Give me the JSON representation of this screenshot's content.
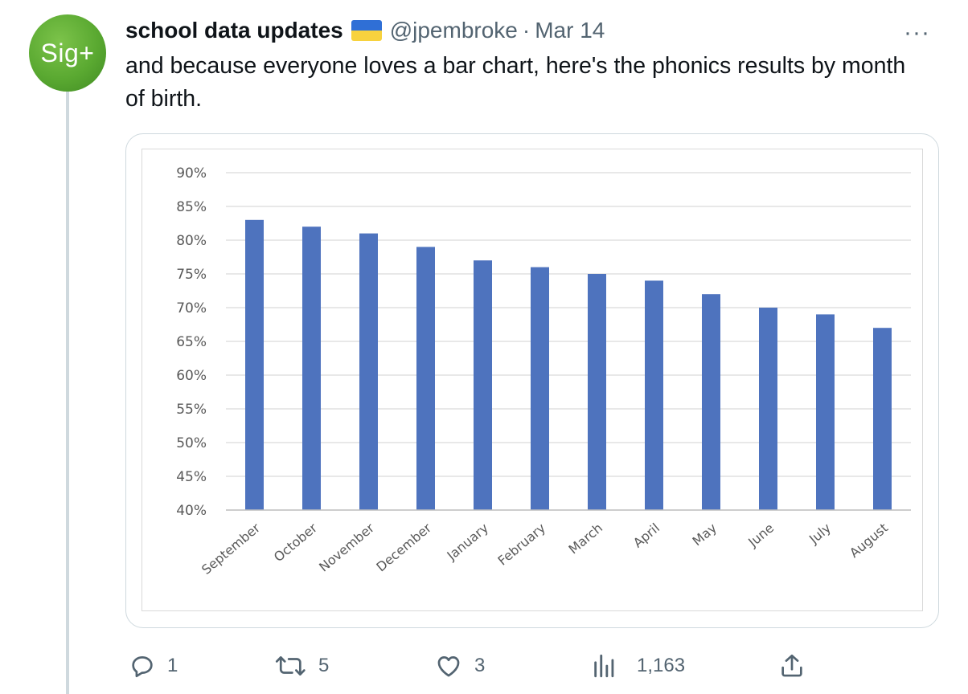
{
  "author": {
    "avatar_text": "Sig+",
    "name": "school data updates",
    "handle": "@jpembroke",
    "separator": "·",
    "date": "Mar 14",
    "flag_colors": [
      "#2f6fd6",
      "#f7d23e"
    ]
  },
  "more_icon": "more-horizontal-icon",
  "more_label": "···",
  "tweet_text": "and because everyone loves a bar chart, here's the phonics results by month of birth.",
  "chart_data": {
    "type": "bar",
    "categories": [
      "September",
      "October",
      "November",
      "December",
      "January",
      "February",
      "March",
      "April",
      "May",
      "June",
      "July",
      "August"
    ],
    "values": [
      83,
      82,
      81,
      79,
      77,
      76,
      75,
      74,
      72,
      70,
      69,
      67
    ],
    "ylim": [
      40,
      90
    ],
    "yticks": [
      "40%",
      "45%",
      "50%",
      "55%",
      "60%",
      "65%",
      "70%",
      "75%",
      "80%",
      "85%",
      "90%"
    ],
    "ytick_values": [
      40,
      45,
      50,
      55,
      60,
      65,
      70,
      75,
      80,
      85,
      90
    ],
    "title": "",
    "xlabel": "",
    "ylabel": "",
    "grid": true,
    "bar_color": "#4e73be",
    "grid_color": "#d9d9d9"
  },
  "actions": {
    "reply": {
      "icon": "reply-icon",
      "count": "1"
    },
    "retweet": {
      "icon": "retweet-icon",
      "count": "5"
    },
    "like": {
      "icon": "heart-icon",
      "count": "3"
    },
    "views": {
      "icon": "views-icon",
      "count": "1,163"
    },
    "share": {
      "icon": "share-icon"
    }
  }
}
